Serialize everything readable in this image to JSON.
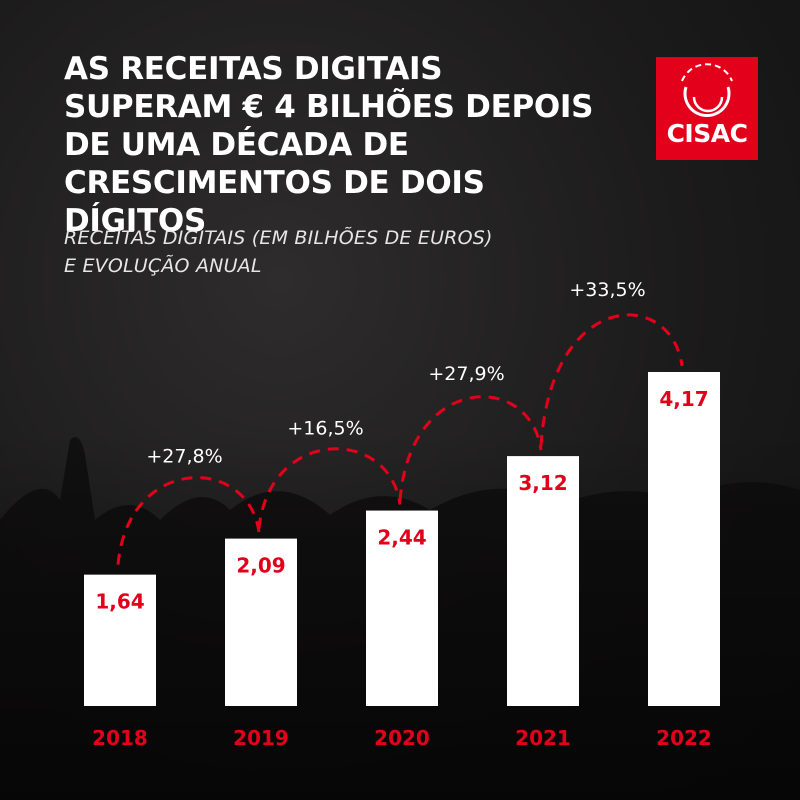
{
  "header": {
    "title": "AS RECEITAS DIGITAIS SUPERAM € 4 BILHÕES DEPOIS DE UMA DÉCADA DE CRESCIMENTOS DE DOIS DÍGITOS",
    "subtitle_line1": "RECEITAS DIGITAIS (EM BILHÕES DE EUROS)",
    "subtitle_line2": "E EVOLUÇÃO ANUAL"
  },
  "logo": {
    "text": "CISAC",
    "color": "#e3001b"
  },
  "colors": {
    "bar": "#ffffff",
    "accent": "#e3001b",
    "text": "#ffffff",
    "background": "#1c1b1b"
  },
  "chart_data": {
    "type": "bar",
    "title": "AS RECEITAS DIGITAIS SUPERAM € 4 BILHÕES DEPOIS DE UMA DÉCADA DE CRESCIMENTOS DE DOIS DÍGITOS",
    "subtitle": "RECEITAS DIGITAIS (EM BILHÕES DE EUROS) E EVOLUÇÃO ANUAL",
    "categories": [
      "2018",
      "2019",
      "2020",
      "2021",
      "2022"
    ],
    "values": [
      1.64,
      2.09,
      2.44,
      3.12,
      4.17
    ],
    "value_labels": [
      "1,64",
      "2,09",
      "2,44",
      "3,12",
      "4,17"
    ],
    "growth_labels": [
      "+27,8%",
      "+16,5%",
      "+27,9%",
      "+33,5%"
    ],
    "ylim": [
      0,
      4.17
    ],
    "grid": false,
    "legend": "none"
  }
}
